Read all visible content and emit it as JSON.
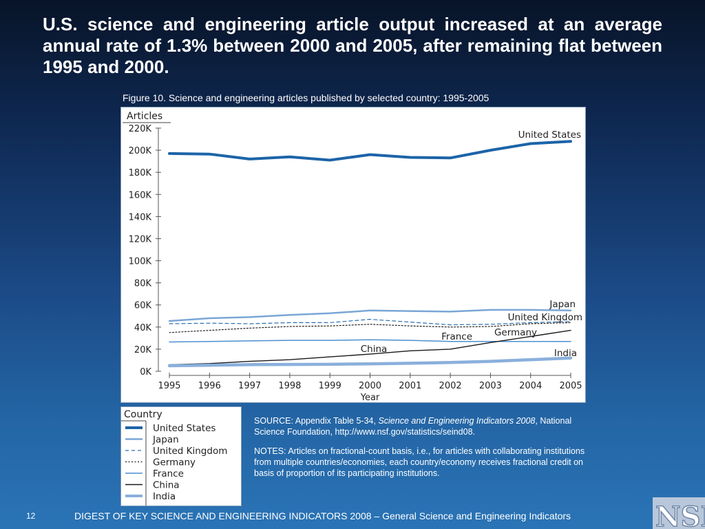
{
  "slide": {
    "title": "U.S. science and engineering article output increased at an average annual rate of 1.3% between 2000 and 2005, after remaining flat between 1995 and 2000.",
    "figure_caption": "Figure 10. Science and engineering articles published by selected country: 1995-2005",
    "source_prefix": "SOURCE: Appendix Table 5-34, ",
    "source_italic": "Science and Engineering Indicators 2008",
    "source_suffix": ", National Science Foundation, http://www.nsf.gov/statistics/seind08.",
    "notes": "NOTES: Articles on fractional-count basis, i.e., for articles with collaborating institutions from multiple countries/economies, each country/economy receives fractional credit on basis of proportion of its participating institutions.",
    "footer": "DIGEST OF KEY SCIENCE AND ENGINEERING INDICATORS 2008 – General Science and Engineering Indicators",
    "slide_number": "12",
    "logo_text": "NSB"
  },
  "chart_data": {
    "type": "line",
    "title": "Figure 10. Science and engineering articles published by selected country: 1995-2005",
    "ylabel": "Articles",
    "xlabel": "Year",
    "x": [
      1995,
      1996,
      1997,
      1998,
      1999,
      2000,
      2001,
      2002,
      2003,
      2004,
      2005
    ],
    "ylim": [
      0,
      220000
    ],
    "y_ticks": [
      0,
      20000,
      40000,
      60000,
      80000,
      100000,
      120000,
      140000,
      160000,
      180000,
      200000,
      220000
    ],
    "y_tick_labels": [
      "0K",
      "20K",
      "40K",
      "60K",
      "80K",
      "100K",
      "120K",
      "140K",
      "160K",
      "180K",
      "200K",
      "220K"
    ],
    "grid": false,
    "legend_title": "Country",
    "legend_position": "below-left",
    "series": [
      {
        "name": "United States",
        "color": "#1c64a8",
        "width": 4,
        "dash": "",
        "values": [
          197000,
          196500,
          192000,
          194000,
          191000,
          196000,
          193500,
          193000,
          200000,
          206000,
          208000
        ]
      },
      {
        "name": "Japan",
        "color": "#7aa6d6",
        "width": 2.5,
        "dash": "",
        "values": [
          45500,
          48000,
          49000,
          51000,
          52500,
          55000,
          54500,
          54000,
          55500,
          55500,
          55000
        ]
      },
      {
        "name": "United Kingdom",
        "color": "#2a6fb0",
        "width": 1.2,
        "dash": "5,4",
        "values": [
          43000,
          43500,
          43000,
          44000,
          44000,
          47000,
          44500,
          42000,
          42500,
          44000,
          45000
        ]
      },
      {
        "name": "Germany",
        "color": "#222222",
        "width": 1.2,
        "dash": "2,2.5",
        "values": [
          35000,
          37000,
          39000,
          40500,
          41000,
          42500,
          41000,
          40000,
          40500,
          43000,
          44000
        ]
      },
      {
        "name": "France",
        "color": "#4d8fd0",
        "width": 1.5,
        "dash": "",
        "values": [
          26500,
          27000,
          27500,
          28000,
          28000,
          28500,
          28000,
          27000,
          27000,
          27000,
          27000
        ]
      },
      {
        "name": "China",
        "color": "#1a1a1a",
        "width": 1.4,
        "dash": "",
        "values": [
          6000,
          7000,
          9000,
          10500,
          13000,
          15500,
          18500,
          20000,
          26000,
          31500,
          37000
        ]
      },
      {
        "name": "India",
        "color": "#8ab0dc",
        "width": 4.5,
        "dash": "",
        "values": [
          5000,
          5500,
          6000,
          6200,
          6300,
          6700,
          7200,
          8000,
          9000,
          10500,
          12000
        ]
      }
    ],
    "annotations": [
      {
        "text": "United States",
        "series": "United States"
      },
      {
        "text": "Japan",
        "series": "Japan"
      },
      {
        "text": "United Kingdom",
        "series": "United Kingdom"
      },
      {
        "text": "Germany",
        "series": "Germany"
      },
      {
        "text": "France",
        "series": "France"
      },
      {
        "text": "China",
        "series": "China"
      },
      {
        "text": "India",
        "series": "India"
      }
    ]
  }
}
